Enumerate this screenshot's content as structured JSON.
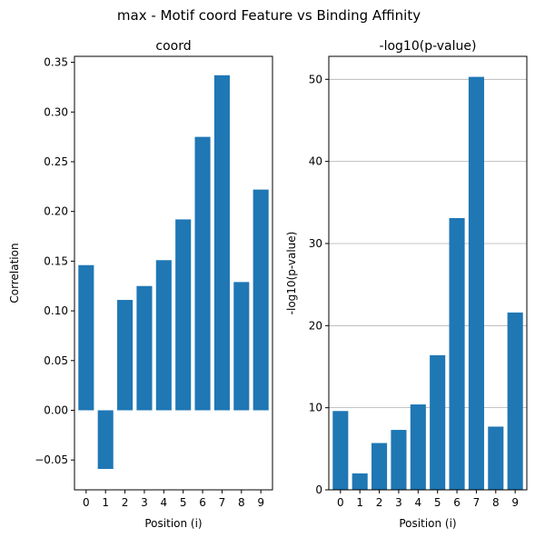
{
  "figure": {
    "suptitle": "max - Motif coord Feature vs Binding Affinity"
  },
  "chart_data": [
    {
      "type": "bar",
      "title": "coord",
      "xlabel": "Position (i)",
      "ylabel": "Correlation",
      "categories": [
        "0",
        "1",
        "2",
        "3",
        "4",
        "5",
        "6",
        "7",
        "8",
        "9"
      ],
      "values": [
        0.146,
        -0.059,
        0.111,
        0.125,
        0.151,
        0.192,
        0.275,
        0.337,
        0.129,
        0.222
      ],
      "ylim": [
        -0.08,
        0.356
      ],
      "yticks": [
        -0.05,
        0.0,
        0.05,
        0.1,
        0.15,
        0.2,
        0.25,
        0.3,
        0.35
      ],
      "ytick_labels": [
        "−0.05",
        "0.00",
        "0.05",
        "0.10",
        "0.15",
        "0.20",
        "0.25",
        "0.30",
        "0.35"
      ],
      "grid": false,
      "color": "#1f77b4"
    },
    {
      "type": "bar",
      "title": "-log10(p-value)",
      "xlabel": "Position (i)",
      "ylabel": "-log10(p-value)",
      "categories": [
        "0",
        "1",
        "2",
        "3",
        "4",
        "5",
        "6",
        "7",
        "8",
        "9"
      ],
      "values": [
        9.6,
        2.0,
        5.7,
        7.3,
        10.4,
        16.4,
        33.1,
        50.3,
        7.7,
        21.6
      ],
      "ylim": [
        0,
        52.8
      ],
      "yticks": [
        0,
        10,
        20,
        30,
        40,
        50
      ],
      "ytick_labels": [
        "0",
        "10",
        "20",
        "30",
        "40",
        "50"
      ],
      "grid": true,
      "grid_axis": "y",
      "color": "#1f77b4"
    }
  ]
}
